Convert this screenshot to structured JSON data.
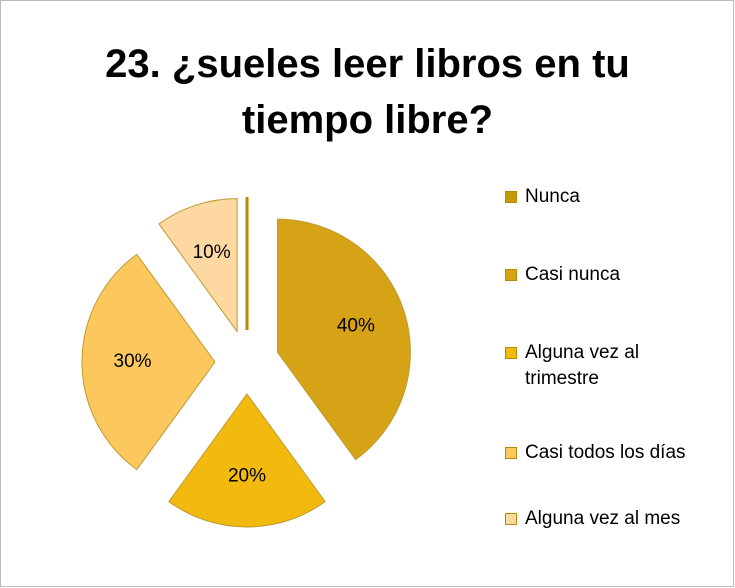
{
  "chart_data": {
    "type": "pie",
    "title": "23. ¿sueles leer libros en tu tiempo libre?",
    "categories": [
      "Nunca",
      "Casi nunca",
      "Alguna vez al trimestre",
      "Casi todos los días",
      "Alguna vez al mes"
    ],
    "values": [
      0,
      40,
      20,
      30,
      10
    ],
    "value_labels": [
      null,
      "40%",
      "20%",
      "30%",
      "10%"
    ],
    "colors": [
      "#c49a06",
      "#d6a317",
      "#f2b90f",
      "#fcc75c",
      "#fdd9a1"
    ],
    "legend": "right"
  }
}
